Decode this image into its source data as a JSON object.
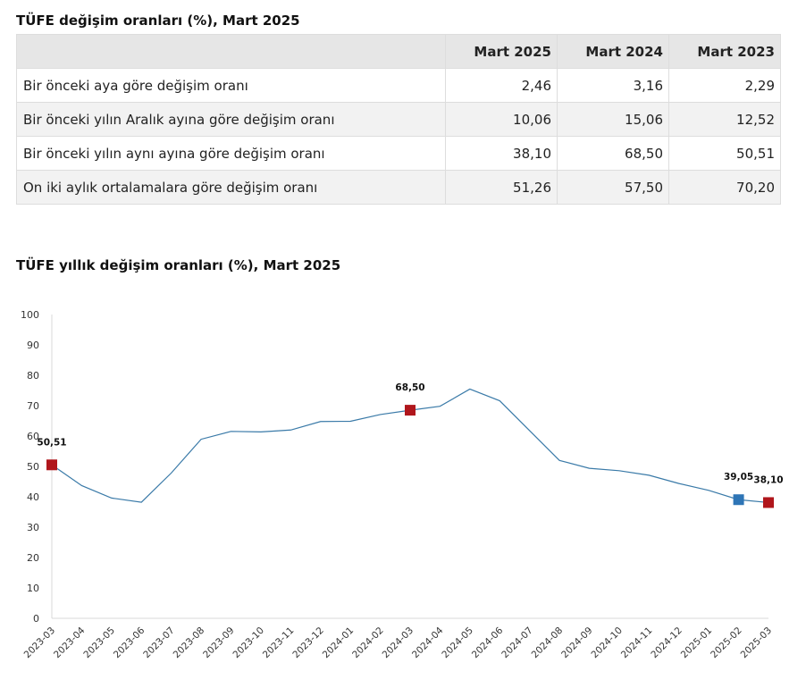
{
  "table_title": "TÜFE değişim oranları (%), Mart 2025",
  "table": {
    "headers": [
      "",
      "Mart 2025",
      "Mart 2024",
      "Mart 2023"
    ],
    "rows": [
      [
        "Bir önceki aya göre değişim oranı",
        "2,46",
        "3,16",
        "2,29"
      ],
      [
        "Bir önceki yılın Aralık ayına göre değişim oranı",
        "10,06",
        "15,06",
        "12,52"
      ],
      [
        "Bir önceki yılın aynı ayına göre değişim oranı",
        "38,10",
        "68,50",
        "50,51"
      ],
      [
        "On iki aylık ortalamalara göre değişim oranı",
        "51,26",
        "57,50",
        "70,20"
      ]
    ]
  },
  "chart_title": "TÜFE yıllık değişim oranları (%), Mart 2025",
  "chart_data": {
    "type": "line",
    "x": [
      "2023-03",
      "2023-04",
      "2023-05",
      "2023-06",
      "2023-07",
      "2023-08",
      "2023-09",
      "2023-10",
      "2023-11",
      "2023-12",
      "2024-01",
      "2024-02",
      "2024-03",
      "2024-04",
      "2024-05",
      "2024-06",
      "2024-07",
      "2024-08",
      "2024-09",
      "2024-10",
      "2024-11",
      "2024-12",
      "2025-01",
      "2025-02",
      "2025-03"
    ],
    "values": [
      50.51,
      43.68,
      39.59,
      38.21,
      47.83,
      58.94,
      61.53,
      61.36,
      61.98,
      64.77,
      64.86,
      67.07,
      68.5,
      69.8,
      75.45,
      71.6,
      61.78,
      51.97,
      49.38,
      48.58,
      47.09,
      44.38,
      42.12,
      39.05,
      38.1
    ],
    "ylim": [
      0,
      100
    ],
    "yticks": [
      0,
      10,
      20,
      30,
      40,
      50,
      60,
      70,
      80,
      90,
      100
    ],
    "grid": false,
    "line_color": "#3a7aa8",
    "markers": [
      {
        "x": "2023-03",
        "label": "50,51",
        "color": "#b0161c"
      },
      {
        "x": "2024-03",
        "label": "68,50",
        "color": "#b0161c"
      },
      {
        "x": "2025-02",
        "label": "39,05",
        "color": "#2e75b6"
      },
      {
        "x": "2025-03",
        "label": "38,10",
        "color": "#b0161c"
      }
    ]
  }
}
